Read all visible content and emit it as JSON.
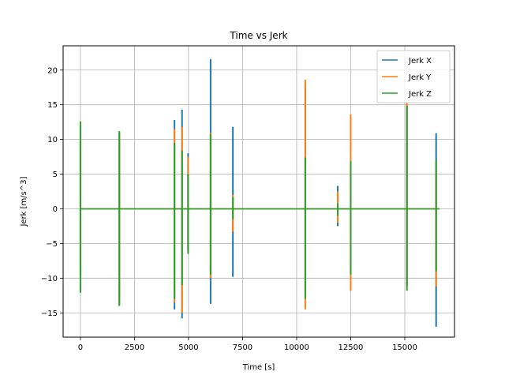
{
  "chart_data": {
    "type": "line",
    "title": "Time vs Jerk",
    "xlabel": "Time [s]",
    "ylabel": "Jerk [m/s^3]",
    "xlim": [
      -800,
      17300
    ],
    "ylim": [
      -18.5,
      23.5
    ],
    "xticks": [
      0,
      2500,
      5000,
      7500,
      10000,
      12500,
      15000
    ],
    "yticks": [
      -15,
      -10,
      -5,
      0,
      5,
      10,
      15,
      20
    ],
    "grid": true,
    "legend_position": "top-right",
    "series": [
      {
        "name": "Jerk X",
        "color": "#1f77b4",
        "spikes": [
          {
            "t": 0,
            "min": -9.5,
            "max": 9.8
          },
          {
            "t": 1800,
            "min": -13.8,
            "max": 11.0
          },
          {
            "t": 4350,
            "min": -14.5,
            "max": 12.8
          },
          {
            "t": 4700,
            "min": -15.8,
            "max": 14.3
          },
          {
            "t": 4980,
            "min": -6.0,
            "max": 8.0
          },
          {
            "t": 6020,
            "min": -13.7,
            "max": 21.6
          },
          {
            "t": 7050,
            "min": -9.8,
            "max": 11.8
          },
          {
            "t": 10400,
            "min": -13.0,
            "max": 17.5
          },
          {
            "t": 11900,
            "min": -2.5,
            "max": 3.3
          },
          {
            "t": 12500,
            "min": -9.0,
            "max": 6.0
          },
          {
            "t": 15100,
            "min": -11.0,
            "max": 15.0
          },
          {
            "t": 16450,
            "min": -17.0,
            "max": 10.9
          }
        ]
      },
      {
        "name": "Jerk Y",
        "color": "#ff7f0e",
        "spikes": [
          {
            "t": 0,
            "min": -9.0,
            "max": 9.5
          },
          {
            "t": 1800,
            "min": -13.5,
            "max": 10.8
          },
          {
            "t": 4350,
            "min": -13.5,
            "max": 11.5
          },
          {
            "t": 4700,
            "min": -15.0,
            "max": 11.8
          },
          {
            "t": 4980,
            "min": -6.2,
            "max": 7.5
          },
          {
            "t": 6020,
            "min": -10.0,
            "max": 11.0
          },
          {
            "t": 7050,
            "min": -3.3,
            "max": 2.0
          },
          {
            "t": 10400,
            "min": -14.5,
            "max": 18.6
          },
          {
            "t": 11900,
            "min": -2.0,
            "max": 2.5
          },
          {
            "t": 12500,
            "min": -11.8,
            "max": 13.6
          },
          {
            "t": 15100,
            "min": -11.2,
            "max": 15.3
          },
          {
            "t": 16450,
            "min": -11.2,
            "max": 5.5
          }
        ]
      },
      {
        "name": "Jerk Z",
        "color": "#2ca02c",
        "spikes": [
          {
            "t": 0,
            "min": -12.1,
            "max": 12.6
          },
          {
            "t": 1800,
            "min": -14.0,
            "max": 11.2
          },
          {
            "t": 4350,
            "min": -13.0,
            "max": 9.5
          },
          {
            "t": 4700,
            "min": -11.0,
            "max": 8.4
          },
          {
            "t": 4980,
            "min": -6.5,
            "max": 5.0
          },
          {
            "t": 6020,
            "min": -9.5,
            "max": 10.8
          },
          {
            "t": 7050,
            "min": -1.5,
            "max": 1.7
          },
          {
            "t": 10400,
            "min": -13.0,
            "max": 7.4
          },
          {
            "t": 11900,
            "min": -1.0,
            "max": 0.8
          },
          {
            "t": 12500,
            "min": -9.5,
            "max": 6.9
          },
          {
            "t": 15100,
            "min": -11.8,
            "max": 14.8
          },
          {
            "t": 16450,
            "min": -9.0,
            "max": 7.0
          }
        ]
      }
    ]
  }
}
